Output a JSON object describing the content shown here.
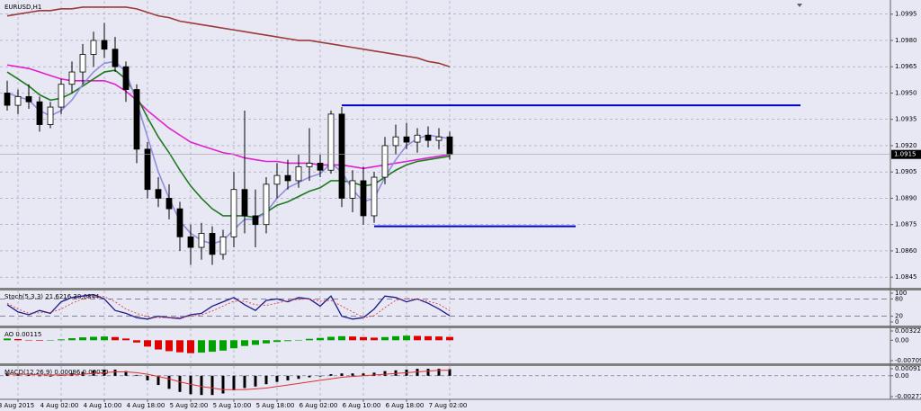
{
  "chart_data": [
    {
      "type": "candlestick",
      "title": "EURUSD,H1",
      "categories": [
        null,
        "3 Aug 2015",
        null,
        null,
        null,
        "4 Aug 02:00",
        null,
        null,
        null,
        "4 Aug 10:00",
        null,
        null,
        null,
        "4 Aug 18:00",
        null,
        null,
        null,
        "5 Aug 02:00",
        null,
        null,
        null,
        "5 Aug 10:00",
        null,
        null,
        null,
        "5 Aug 18:00",
        null,
        null,
        null,
        "6 Aug 02:00",
        null,
        null,
        null,
        "6 Aug 10:00",
        null,
        null,
        null,
        "6 Aug 18:00",
        null,
        null,
        null,
        "7 Aug 02:00"
      ],
      "open": [
        1.095,
        1.0943,
        1.0948,
        1.0945,
        1.0932,
        1.0942,
        1.0955,
        1.0962,
        1.0972,
        1.098,
        1.0975,
        1.0965,
        1.0952,
        1.0918,
        1.0895,
        1.089,
        1.0884,
        1.0868,
        1.0862,
        1.087,
        1.0858,
        1.0868,
        1.0895,
        1.088,
        1.0875,
        1.0898,
        1.0903,
        1.09,
        1.0908,
        1.091,
        1.0906,
        1.0938,
        1.089,
        1.09,
        1.088,
        1.0902,
        1.092,
        1.0925,
        1.0922,
        1.0926,
        1.0923,
        1.0925
      ],
      "high": [
        1.0957,
        1.0952,
        1.0955,
        1.0948,
        1.0945,
        1.0958,
        1.0968,
        1.0978,
        1.0985,
        1.099,
        1.0982,
        1.0968,
        1.0955,
        1.0922,
        1.0902,
        1.0898,
        1.0888,
        1.0875,
        1.0876,
        1.0874,
        1.0872,
        1.0905,
        1.094,
        1.0895,
        1.0902,
        1.091,
        1.0912,
        1.0915,
        1.093,
        1.0915,
        1.094,
        1.0942,
        1.0906,
        1.0908,
        1.0905,
        1.0925,
        1.0932,
        1.0933,
        1.093,
        1.0931,
        1.093,
        1.0928
      ],
      "low": [
        1.094,
        1.0938,
        1.0941,
        1.0928,
        1.093,
        1.0938,
        1.095,
        1.0955,
        1.0965,
        1.097,
        1.0962,
        1.0945,
        1.091,
        1.089,
        1.0885,
        1.0878,
        1.086,
        1.0852,
        1.0855,
        1.0852,
        1.0855,
        1.0862,
        1.087,
        1.0862,
        1.087,
        1.089,
        1.0895,
        1.0896,
        1.09,
        1.0902,
        1.0904,
        1.0885,
        1.0882,
        1.0875,
        1.0876,
        1.0898,
        1.0915,
        1.0918,
        1.0916,
        1.0919,
        1.0918,
        1.0912
      ],
      "close": [
        1.0943,
        1.0948,
        1.0945,
        1.0932,
        1.0942,
        1.0955,
        1.0962,
        1.0972,
        1.098,
        1.0975,
        1.0965,
        1.0952,
        1.0918,
        1.0895,
        1.089,
        1.0884,
        1.0868,
        1.0862,
        1.087,
        1.0858,
        1.0868,
        1.0895,
        1.088,
        1.0875,
        1.0898,
        1.0903,
        1.09,
        1.0908,
        1.091,
        1.0906,
        1.0938,
        1.089,
        1.09,
        1.088,
        1.0902,
        1.092,
        1.0925,
        1.0922,
        1.0926,
        1.0923,
        1.0925,
        1.0915
      ],
      "lines": [
        {
          "color": "#9b3a3a",
          "values": [
            1.0994,
            1.0995,
            1.0996,
            1.0997,
            1.0997,
            1.0998,
            1.0998,
            1.0999,
            1.0999,
            1.0999,
            1.0999,
            1.0999,
            1.0998,
            1.0996,
            1.0994,
            1.0993,
            1.0991,
            1.099,
            1.0989,
            1.0988,
            1.0987,
            1.0986,
            1.0985,
            1.0984,
            1.0983,
            1.0982,
            1.0981,
            1.098,
            1.098,
            1.0979,
            1.0978,
            1.0977,
            1.0976,
            1.0975,
            1.0974,
            1.0973,
            1.0972,
            1.0971,
            1.097,
            1.0968,
            1.0967,
            1.0965
          ]
        },
        {
          "color": "#e020d0",
          "values": [
            1.0966,
            1.0965,
            1.0964,
            1.0962,
            1.096,
            1.0958,
            1.0957,
            1.0957,
            1.0957,
            1.0957,
            1.0955,
            1.0951,
            1.0946,
            1.094,
            1.0935,
            1.093,
            1.0926,
            1.0922,
            1.092,
            1.0918,
            1.0916,
            1.0915,
            1.0913,
            1.0912,
            1.0911,
            1.0911,
            1.091,
            1.091,
            1.091,
            1.0909,
            1.0909,
            1.0909,
            1.0908,
            1.0907,
            1.0908,
            1.0909,
            1.091,
            1.0911,
            1.0912,
            1.0913,
            1.0914,
            1.0915
          ]
        },
        {
          "color": "#1f7a1f",
          "values": [
            1.0962,
            1.0958,
            1.0954,
            1.0949,
            1.0946,
            1.0947,
            1.095,
            1.0954,
            1.0958,
            1.0962,
            1.0963,
            1.0958,
            1.0948,
            1.0936,
            1.0925,
            1.0916,
            1.0906,
            1.0897,
            1.089,
            1.0884,
            1.088,
            1.088,
            1.088,
            1.0879,
            1.0882,
            1.0886,
            1.0888,
            1.0891,
            1.0894,
            1.0896,
            1.09,
            1.09,
            1.0899,
            1.0897,
            1.0898,
            1.0902,
            1.0906,
            1.0909,
            1.0911,
            1.0912,
            1.0913,
            1.0914
          ]
        },
        {
          "color": "#8f8fe0",
          "values": [
            1.095,
            1.0948,
            1.0946,
            1.094,
            1.0937,
            1.094,
            1.0946,
            1.0955,
            1.0962,
            1.0967,
            1.0968,
            1.0962,
            1.0945,
            1.0925,
            1.0905,
            1.089,
            1.0877,
            1.087,
            1.0866,
            1.0864,
            1.0866,
            1.0872,
            1.0878,
            1.0878,
            1.0882,
            1.089,
            1.0896,
            1.0899,
            1.0902,
            1.0904,
            1.091,
            1.0905,
            1.0895,
            1.0888,
            1.089,
            1.0902,
            1.0912,
            1.092,
            1.0924,
            1.0926,
            1.0925,
            1.0924
          ]
        }
      ],
      "levels": {
        "color": "#0000cc",
        "values": [
          1.0943,
          1.0874
        ]
      },
      "current_price": 1.0915,
      "ylim": [
        1.0841,
        1.1001
      ],
      "yticks": [
        1.0845,
        {
          "value": 1.086,
          "label": "1.0860"
        },
        1.0875,
        {
          "value": 1.089,
          "label": "1.0890"
        },
        1.0905,
        {
          "value": 1.092,
          "label": "1.0920"
        },
        1.0935,
        {
          "value": 1.095,
          "label": "1.0950"
        },
        1.0965,
        {
          "value": 1.098,
          "label": "1.0980"
        },
        1.0995
      ],
      "grid": true
    },
    {
      "type": "line",
      "title": "Stoch(5,3,3) 21.6216 38.6844",
      "series": [
        {
          "color": "#1a1a8c",
          "values": [
            60,
            35,
            25,
            40,
            30,
            70,
            85,
            90,
            95,
            80,
            40,
            30,
            15,
            10,
            20,
            15,
            12,
            25,
            30,
            55,
            70,
            85,
            60,
            40,
            75,
            80,
            70,
            85,
            80,
            55,
            90,
            20,
            10,
            15,
            45,
            90,
            85,
            70,
            80,
            65,
            45,
            21.6216
          ]
        },
        {
          "color": "#e04040",
          "values": [
            65,
            45,
            30,
            32,
            33,
            45,
            65,
            80,
            90,
            88,
            70,
            45,
            30,
            18,
            15,
            15,
            16,
            20,
            25,
            38,
            55,
            72,
            72,
            60,
            58,
            65,
            75,
            78,
            80,
            72,
            75,
            55,
            35,
            15,
            22,
            50,
            75,
            82,
            78,
            72,
            62,
            38.6844
          ]
        }
      ],
      "levels": [
        20,
        80
      ],
      "ylim": [
        0,
        100
      ],
      "yticks": [
        0,
        20,
        80,
        100
      ]
    },
    {
      "type": "bar",
      "title": "AO 0.00115",
      "values": [
        0.0006,
        0.0004,
        0.0001,
        -0.0002,
        -0.0001,
        0.0003,
        0.0007,
        0.001,
        0.0012,
        0.0013,
        0.0011,
        0.0006,
        -0.0008,
        -0.0022,
        -0.0032,
        -0.0038,
        -0.0042,
        -0.0045,
        -0.0043,
        -0.004,
        -0.0036,
        -0.0028,
        -0.002,
        -0.0016,
        -0.0011,
        -0.0006,
        -0.0003,
        0.0001,
        0.0005,
        0.0008,
        0.0012,
        0.0014,
        0.0013,
        0.0011,
        0.0009,
        0.0011,
        0.0014,
        0.0016,
        0.0015,
        0.0014,
        0.0013,
        0.00115
      ],
      "colors": {
        "up": "#00a000",
        "down": "#e00000"
      },
      "ylim": [
        -0.00709,
        0.00322
      ],
      "yticks": [
        -0.00709,
        {
          "value": 0,
          "label": "0.00"
        },
        0.00322
      ]
    },
    {
      "type": "macd",
      "title": "MACD(12,26,9) 0.00086 0.00070",
      "values": [
        0.0003,
        0.0002,
        0.0001,
        0.0,
        -0.0001,
        0.0001,
        0.0003,
        0.0005,
        0.0007,
        0.0008,
        0.0008,
        0.0006,
        0.0001,
        -0.0006,
        -0.0012,
        -0.0017,
        -0.0021,
        -0.0024,
        -0.0025,
        -0.0025,
        -0.0023,
        -0.0019,
        -0.0016,
        -0.0014,
        -0.0011,
        -0.0008,
        -0.0006,
        -0.0004,
        -0.0002,
        -0.0001,
        0.0002,
        0.0003,
        0.0003,
        0.0003,
        0.0004,
        0.0006,
        0.0007,
        0.0008,
        0.0009,
        0.0009,
        0.0009,
        0.00086
      ],
      "signal": [
        0.0002,
        0.0002,
        0.0002,
        0.0001,
        0.0001,
        0.0001,
        0.0001,
        0.0002,
        0.0003,
        0.0004,
        0.0005,
        0.0005,
        0.0004,
        0.0002,
        -0.0001,
        -0.0004,
        -0.0008,
        -0.0011,
        -0.0014,
        -0.0016,
        -0.0018,
        -0.0018,
        -0.0018,
        -0.0017,
        -0.0016,
        -0.0014,
        -0.0012,
        -0.001,
        -0.0008,
        -0.0006,
        -0.0004,
        -0.0002,
        -0.0001,
        0.0,
        0.0001,
        0.0002,
        0.0003,
        0.0004,
        0.0005,
        0.0006,
        0.0007,
        0.0007
      ],
      "color": "#000000",
      "signal_color": "#e03030",
      "ylim": [
        -0.00271,
        0.00091
      ],
      "yticks": [
        -0.00271,
        {
          "value": 0,
          "label": "0.00"
        },
        0.00091
      ]
    }
  ]
}
